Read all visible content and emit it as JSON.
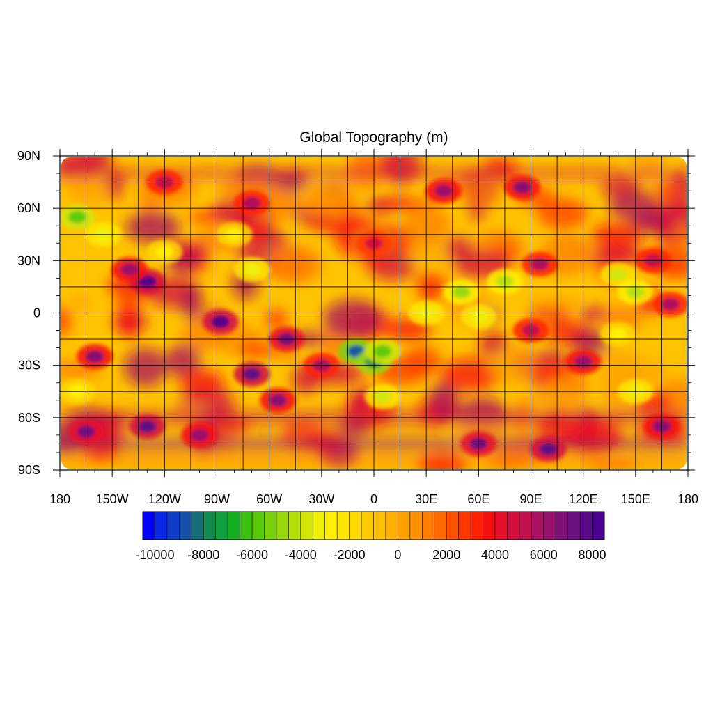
{
  "chart_data": {
    "type": "heatmap",
    "title": "Global Topography (m)",
    "projection": "cylindrical-equidistant",
    "xlim": [
      -180,
      180
    ],
    "ylim": [
      -90,
      90
    ],
    "x_ticks": [
      -180,
      -150,
      -120,
      -90,
      -60,
      -30,
      0,
      30,
      60,
      90,
      120,
      150,
      180
    ],
    "x_tick_labels": [
      "180",
      "150W",
      "120W",
      "90W",
      "60W",
      "30W",
      "0",
      "30E",
      "60E",
      "90E",
      "120E",
      "150E",
      "180"
    ],
    "y_ticks": [
      90,
      60,
      30,
      0,
      -30,
      -60,
      -90
    ],
    "y_tick_labels": [
      "90N",
      "60N",
      "30N",
      "0",
      "30S",
      "60S",
      "90S"
    ],
    "gridlines": true,
    "grid_spacing_deg": 15,
    "colorbar": {
      "orientation": "horizontal",
      "placement": "bottom",
      "levels": [
        -10000,
        -9500,
        -9000,
        -8500,
        -8000,
        -7500,
        -7000,
        -6500,
        -6000,
        -5500,
        -5000,
        -4500,
        -4000,
        -3500,
        -3000,
        -2500,
        -2000,
        -1500,
        -1000,
        -500,
        0,
        500,
        1000,
        1500,
        2000,
        2500,
        3000,
        3500,
        4000,
        4500,
        5000,
        5500,
        6000,
        6500,
        7000,
        7500,
        8000,
        8500
      ],
      "tick_labels": [
        "-10000",
        "-8000",
        "-6000",
        "-4000",
        "-2000",
        "0",
        "2000",
        "4000",
        "6000",
        "8000"
      ],
      "colors": [
        "#0000ff",
        "#0a28e6",
        "#0f3cc8",
        "#1450aa",
        "#146e78",
        "#128a50",
        "#10a040",
        "#12b020",
        "#3cc010",
        "#5ac80a",
        "#78d00a",
        "#96d80a",
        "#b4e00a",
        "#d2e60a",
        "#eef008",
        "#fff000",
        "#ffe600",
        "#ffd800",
        "#ffcc00",
        "#ffbe00",
        "#ffb000",
        "#ffa200",
        "#ff9000",
        "#ff7e00",
        "#ff6a00",
        "#ff5200",
        "#ff3800",
        "#ff2000",
        "#f51010",
        "#e6102a",
        "#d21040",
        "#c0104e",
        "#aa1060",
        "#961070",
        "#801078",
        "#6a1080",
        "#5a0a88",
        "#4a0090"
      ]
    },
    "features": [
      {
        "lon": -10,
        "lat": -22,
        "value": -9000
      },
      {
        "lon": 0,
        "lat": -28,
        "value": -8000
      },
      {
        "lon": 5,
        "lat": -22,
        "value": -6000
      },
      {
        "lon": 5,
        "lat": -48,
        "value": -4000
      },
      {
        "lon": 50,
        "lat": 12,
        "value": -5000
      },
      {
        "lon": 75,
        "lat": 18,
        "value": -4500
      },
      {
        "lon": 30,
        "lat": 0,
        "value": -3500
      },
      {
        "lon": 60,
        "lat": -2,
        "value": -3500
      },
      {
        "lon": 140,
        "lat": 22,
        "value": -4000
      },
      {
        "lon": 150,
        "lat": 12,
        "value": -4500
      },
      {
        "lon": -170,
        "lat": 55,
        "value": -6000
      },
      {
        "lon": -155,
        "lat": 45,
        "value": -3500
      },
      {
        "lon": -80,
        "lat": 45,
        "value": -3000
      },
      {
        "lon": -70,
        "lat": 25,
        "value": -3500
      },
      {
        "lon": -120,
        "lat": 35,
        "value": -3000
      },
      {
        "lon": 150,
        "lat": -45,
        "value": -3500
      },
      {
        "lon": 140,
        "lat": -12,
        "value": -3000
      },
      {
        "lon": -170,
        "lat": -45,
        "value": -3000
      },
      {
        "lon": -130,
        "lat": 18,
        "value": 8000
      },
      {
        "lon": -140,
        "lat": 25,
        "value": 6000
      },
      {
        "lon": -88,
        "lat": -5,
        "value": 8000
      },
      {
        "lon": -70,
        "lat": -35,
        "value": 7500
      },
      {
        "lon": -50,
        "lat": -15,
        "value": 7000
      },
      {
        "lon": -55,
        "lat": -50,
        "value": 6500
      },
      {
        "lon": -160,
        "lat": -25,
        "value": 6500
      },
      {
        "lon": -165,
        "lat": -68,
        "value": 7000
      },
      {
        "lon": -130,
        "lat": -65,
        "value": 7500
      },
      {
        "lon": -100,
        "lat": -70,
        "value": 6000
      },
      {
        "lon": 60,
        "lat": -75,
        "value": 7000
      },
      {
        "lon": 100,
        "lat": -78,
        "value": 7500
      },
      {
        "lon": 165,
        "lat": -65,
        "value": 6500
      },
      {
        "lon": 120,
        "lat": -28,
        "value": 6000
      },
      {
        "lon": 95,
        "lat": 28,
        "value": 5500
      },
      {
        "lon": 160,
        "lat": 30,
        "value": 5000
      },
      {
        "lon": 85,
        "lat": 72,
        "value": 6500
      },
      {
        "lon": 40,
        "lat": 70,
        "value": 6000
      },
      {
        "lon": -70,
        "lat": 63,
        "value": 5500
      },
      {
        "lon": -120,
        "lat": 75,
        "value": 5000
      },
      {
        "lon": 0,
        "lat": 40,
        "value": 4500
      },
      {
        "lon": 90,
        "lat": -10,
        "value": 5000
      },
      {
        "lon": -30,
        "lat": -30,
        "value": 5500
      },
      {
        "lon": 170,
        "lat": 5,
        "value": 5500
      }
    ]
  }
}
